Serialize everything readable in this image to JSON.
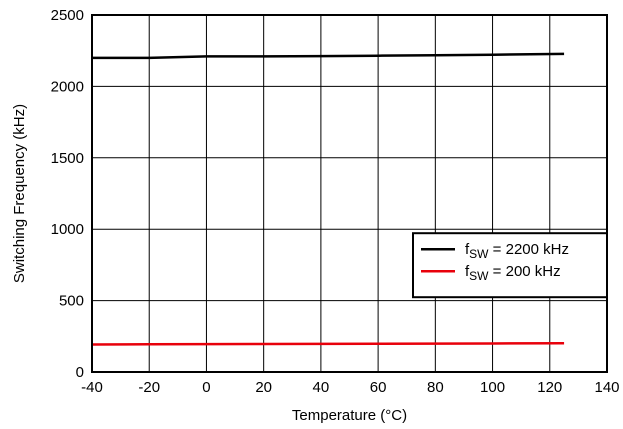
{
  "chart_data": {
    "type": "line",
    "title": "",
    "xlabel": "Temperature (°C)",
    "ylabel": "Switching Frequency (kHz)",
    "xlim": [
      -40,
      140
    ],
    "ylim": [
      0,
      2500
    ],
    "xticks": [
      -40,
      -20,
      0,
      20,
      40,
      60,
      80,
      100,
      120,
      140
    ],
    "yticks": [
      0,
      500,
      1000,
      1500,
      2000,
      2500
    ],
    "grid": true,
    "legend_position": "right",
    "series": [
      {
        "name": "f_SW = 2200 kHz",
        "legend_main": "f",
        "legend_sub": "SW",
        "legend_rest": " = 2200 kHz",
        "color": "#000000",
        "x": [
          -40,
          -20,
          0,
          20,
          40,
          60,
          80,
          100,
          125
        ],
        "y": [
          2200,
          2200,
          2210,
          2210,
          2212,
          2215,
          2218,
          2222,
          2228
        ]
      },
      {
        "name": "f_SW = 200 kHz",
        "legend_main": "f",
        "legend_sub": "SW",
        "legend_rest": " = 200 kHz",
        "color": "#e8000b",
        "x": [
          -40,
          -20,
          0,
          20,
          40,
          60,
          80,
          100,
          125
        ],
        "y": [
          193,
          194,
          195,
          196,
          197,
          198,
          199,
          200,
          201
        ]
      }
    ]
  }
}
